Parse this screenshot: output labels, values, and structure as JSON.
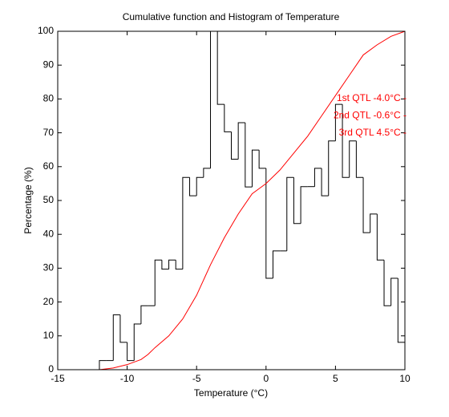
{
  "chart_data": {
    "type": "histogram",
    "title": "Cumulative function and Histogram of Temperature",
    "xlabel": "Temperature (°C)",
    "ylabel": "Percentage (%)",
    "bins": [
      -12,
      -11.5,
      -11,
      -10.5,
      -10,
      -9.5,
      -9,
      -8.5,
      -8,
      -7.5,
      -7,
      -6.5,
      -6,
      -5.5,
      -5,
      -4.5,
      -4,
      -3.5,
      -3,
      -2.5,
      -2,
      -1.5,
      -1,
      -0.5,
      0,
      0.5,
      1,
      1.5,
      2,
      2.5,
      3,
      3.5,
      4,
      4.5,
      5,
      5.5,
      6,
      6.5,
      7,
      7.5,
      8,
      8.5,
      9,
      9.5,
      10
    ],
    "values": [
      2.7,
      2.7,
      16.2,
      8.1,
      2.7,
      13.5,
      18.9,
      18.9,
      32.4,
      29.7,
      32.4,
      29.7,
      56.8,
      51.4,
      56.8,
      59.5,
      100,
      78.4,
      70.3,
      62.2,
      73,
      54,
      64.9,
      59.5,
      27,
      35.1,
      35.1,
      56.8,
      43.2,
      54.1,
      54.1,
      59.5,
      51.4,
      67.6,
      78.4,
      56.8,
      67.6,
      56.8,
      40.5,
      46,
      32.4,
      18.9,
      27,
      8.1
    ],
    "color": "#000000",
    "cumulative": {
      "type": "line",
      "color": "#ff0000",
      "x": [
        -12,
        -11,
        -10,
        -9,
        -8.5,
        -8,
        -7,
        -6,
        -5,
        -4,
        -3,
        -2,
        -1,
        -0.5,
        0,
        1,
        2,
        3,
        4,
        5,
        6,
        7,
        8,
        9,
        10
      ],
      "values": [
        0,
        0.5,
        1.5,
        3,
        4.5,
        6.5,
        10,
        15,
        22,
        31,
        39,
        46,
        52,
        53.5,
        55,
        59,
        64,
        69,
        75,
        81,
        87,
        93,
        96,
        98.5,
        100
      ]
    },
    "annotations": [
      "1st QTL -4.0°C -",
      "2nd QTL -0.6°C -",
      "3rd QTL  4.5°C -"
    ],
    "annotation_color": "#ff0000",
    "xlim": [
      -15,
      10
    ],
    "ylim": [
      0,
      100
    ],
    "xticks": [
      -15,
      -10,
      -5,
      0,
      5,
      10
    ],
    "yticks": [
      0,
      10,
      20,
      30,
      40,
      50,
      60,
      70,
      80,
      90,
      100
    ]
  }
}
